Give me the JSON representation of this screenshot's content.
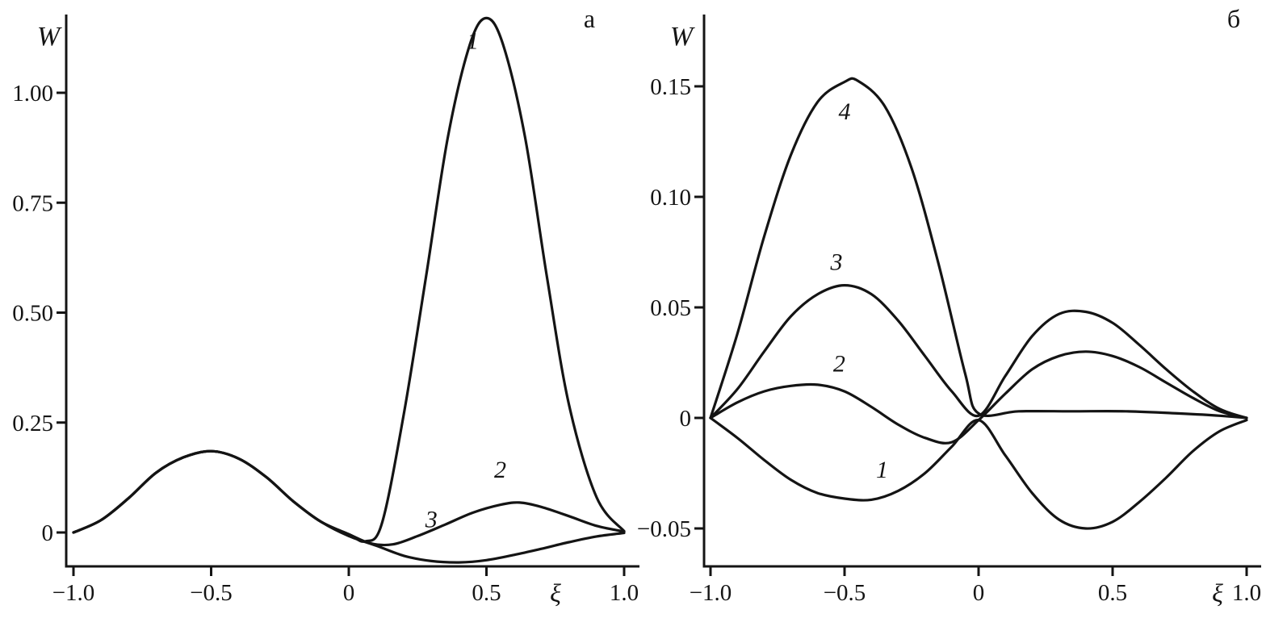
{
  "figure": {
    "background": "#ffffff",
    "ink": "#141414"
  },
  "chart_data": [
    {
      "type": "line",
      "panel_label": "а",
      "ylabel": "W",
      "xlabel": "ξ",
      "xlim": [
        -1.0,
        1.0
      ],
      "ylim": [
        -0.09,
        1.21
      ],
      "grid": false,
      "legend": "none",
      "x_tick_values": [
        -1.0,
        -0.5,
        0,
        0.5,
        1.0
      ],
      "x_tick_labels": [
        "−1.0",
        "−0.5",
        "0",
        "0.5",
        "1.0"
      ],
      "y_tick_values": [
        0,
        0.25,
        0.5,
        0.75,
        1.0
      ],
      "y_tick_labels": [
        "0",
        "0.25",
        "0.50",
        "0.75",
        "1.00"
      ],
      "series": [
        {
          "name": "1",
          "label": "1",
          "label_at": [
            0.45,
            1.1
          ],
          "points": [
            [
              -1,
              0
            ],
            [
              -0.9,
              0.028
            ],
            [
              -0.8,
              0.078
            ],
            [
              -0.7,
              0.136
            ],
            [
              -0.6,
              0.171
            ],
            [
              -0.5,
              0.185
            ],
            [
              -0.4,
              0.168
            ],
            [
              -0.3,
              0.126
            ],
            [
              -0.2,
              0.07
            ],
            [
              -0.1,
              0.024
            ],
            [
              0,
              -0.004
            ],
            [
              0.06,
              -0.02
            ],
            [
              0.12,
              0.02
            ],
            [
              0.2,
              0.27
            ],
            [
              0.28,
              0.58
            ],
            [
              0.36,
              0.9
            ],
            [
              0.44,
              1.11
            ],
            [
              0.5,
              1.17
            ],
            [
              0.56,
              1.11
            ],
            [
              0.64,
              0.9
            ],
            [
              0.72,
              0.58
            ],
            [
              0.8,
              0.29
            ],
            [
              0.9,
              0.08
            ],
            [
              1,
              0.003
            ]
          ]
        },
        {
          "name": "2",
          "label": "2",
          "label_at": [
            0.55,
            0.125
          ],
          "points": [
            [
              -1,
              0
            ],
            [
              -0.9,
              0.028
            ],
            [
              -0.8,
              0.078
            ],
            [
              -0.7,
              0.136
            ],
            [
              -0.6,
              0.171
            ],
            [
              -0.5,
              0.185
            ],
            [
              -0.4,
              0.168
            ],
            [
              -0.3,
              0.126
            ],
            [
              -0.2,
              0.07
            ],
            [
              -0.1,
              0.024
            ],
            [
              0,
              -0.004
            ],
            [
              0.08,
              -0.025
            ],
            [
              0.16,
              -0.027
            ],
            [
              0.25,
              -0.008
            ],
            [
              0.35,
              0.018
            ],
            [
              0.45,
              0.045
            ],
            [
              0.55,
              0.063
            ],
            [
              0.62,
              0.068
            ],
            [
              0.7,
              0.058
            ],
            [
              0.8,
              0.037
            ],
            [
              0.9,
              0.015
            ],
            [
              1,
              0.002
            ]
          ]
        },
        {
          "name": "3",
          "label": "3",
          "label_at": [
            0.3,
            0.012
          ],
          "points": [
            [
              -1,
              0
            ],
            [
              -0.9,
              0.028
            ],
            [
              -0.8,
              0.078
            ],
            [
              -0.7,
              0.136
            ],
            [
              -0.6,
              0.171
            ],
            [
              -0.5,
              0.185
            ],
            [
              -0.4,
              0.168
            ],
            [
              -0.3,
              0.126
            ],
            [
              -0.2,
              0.07
            ],
            [
              -0.1,
              0.024
            ],
            [
              0,
              -0.008
            ],
            [
              0.1,
              -0.03
            ],
            [
              0.2,
              -0.053
            ],
            [
              0.3,
              -0.065
            ],
            [
              0.4,
              -0.068
            ],
            [
              0.5,
              -0.063
            ],
            [
              0.6,
              -0.051
            ],
            [
              0.7,
              -0.037
            ],
            [
              0.8,
              -0.022
            ],
            [
              0.9,
              -0.009
            ],
            [
              1,
              -0.001
            ]
          ]
        }
      ]
    },
    {
      "type": "line",
      "panel_label": "б",
      "ylabel": "W",
      "xlabel": "ξ",
      "xlim": [
        -1.0,
        1.0
      ],
      "ylim": [
        -0.067,
        0.17
      ],
      "grid": false,
      "legend": "none",
      "x_tick_values": [
        -1.0,
        -0.5,
        0,
        0.5,
        1.0
      ],
      "x_tick_labels": [
        "−1.0",
        "−0.5",
        "0",
        "0.5",
        "1.0"
      ],
      "y_tick_values": [
        -0.05,
        0,
        0.05,
        0.1,
        0.15
      ],
      "y_tick_labels": [
        "−0.05",
        "0",
        "0.05",
        "0.10",
        "0.15"
      ],
      "series": [
        {
          "name": "1",
          "label": "1",
          "label_at": [
            -0.36,
            -0.027
          ],
          "points": [
            [
              -1,
              0
            ],
            [
              -0.9,
              -0.009
            ],
            [
              -0.8,
              -0.019
            ],
            [
              -0.7,
              -0.028
            ],
            [
              -0.6,
              -0.034
            ],
            [
              -0.5,
              -0.0365
            ],
            [
              -0.4,
              -0.037
            ],
            [
              -0.3,
              -0.033
            ],
            [
              -0.2,
              -0.025
            ],
            [
              -0.1,
              -0.013
            ],
            [
              0,
              -0.001
            ],
            [
              0.1,
              -0.017
            ],
            [
              0.2,
              -0.034
            ],
            [
              0.3,
              -0.046
            ],
            [
              0.4,
              -0.05
            ],
            [
              0.5,
              -0.047
            ],
            [
              0.6,
              -0.038
            ],
            [
              0.7,
              -0.027
            ],
            [
              0.8,
              -0.015
            ],
            [
              0.9,
              -0.006
            ],
            [
              1,
              -0.001
            ]
          ]
        },
        {
          "name": "2",
          "label": "2",
          "label_at": [
            -0.52,
            0.021
          ],
          "points": [
            [
              -1,
              0
            ],
            [
              -0.9,
              0.007
            ],
            [
              -0.8,
              0.012
            ],
            [
              -0.7,
              0.0145
            ],
            [
              -0.6,
              0.015
            ],
            [
              -0.5,
              0.012
            ],
            [
              -0.4,
              0.005
            ],
            [
              -0.3,
              -0.003
            ],
            [
              -0.2,
              -0.009
            ],
            [
              -0.1,
              -0.011
            ],
            [
              0,
              -0.001
            ],
            [
              0.1,
              0.011
            ],
            [
              0.2,
              0.022
            ],
            [
              0.3,
              0.028
            ],
            [
              0.4,
              0.03
            ],
            [
              0.5,
              0.028
            ],
            [
              0.6,
              0.023
            ],
            [
              0.7,
              0.016
            ],
            [
              0.8,
              0.009
            ],
            [
              0.9,
              0.003
            ],
            [
              1,
              0
            ]
          ]
        },
        {
          "name": "3",
          "label": "3",
          "label_at": [
            -0.53,
            0.067
          ],
          "points": [
            [
              -1,
              0
            ],
            [
              -0.9,
              0.013
            ],
            [
              -0.8,
              0.03
            ],
            [
              -0.7,
              0.046
            ],
            [
              -0.6,
              0.056
            ],
            [
              -0.5,
              0.06
            ],
            [
              -0.4,
              0.056
            ],
            [
              -0.3,
              0.044
            ],
            [
              -0.2,
              0.028
            ],
            [
              -0.1,
              0.012
            ],
            [
              0,
              0.001
            ],
            [
              0.1,
              0.019
            ],
            [
              0.2,
              0.037
            ],
            [
              0.3,
              0.047
            ],
            [
              0.4,
              0.048
            ],
            [
              0.5,
              0.043
            ],
            [
              0.6,
              0.033
            ],
            [
              0.7,
              0.022
            ],
            [
              0.8,
              0.012
            ],
            [
              0.9,
              0.004
            ],
            [
              1,
              0
            ]
          ]
        },
        {
          "name": "4",
          "label": "4",
          "label_at": [
            -0.5,
            0.135
          ],
          "points": [
            [
              -1,
              0
            ],
            [
              -0.9,
              0.038
            ],
            [
              -0.8,
              0.082
            ],
            [
              -0.7,
              0.119
            ],
            [
              -0.6,
              0.143
            ],
            [
              -0.5,
              0.152
            ],
            [
              -0.45,
              0.1525
            ],
            [
              -0.35,
              0.141
            ],
            [
              -0.25,
              0.113
            ],
            [
              -0.15,
              0.07
            ],
            [
              -0.05,
              0.02
            ],
            [
              0,
              0.002
            ],
            [
              0.15,
              0.003
            ],
            [
              0.35,
              0.003
            ],
            [
              0.55,
              0.003
            ],
            [
              0.75,
              0.002
            ],
            [
              0.9,
              0.001
            ],
            [
              1,
              0
            ]
          ]
        }
      ]
    }
  ]
}
